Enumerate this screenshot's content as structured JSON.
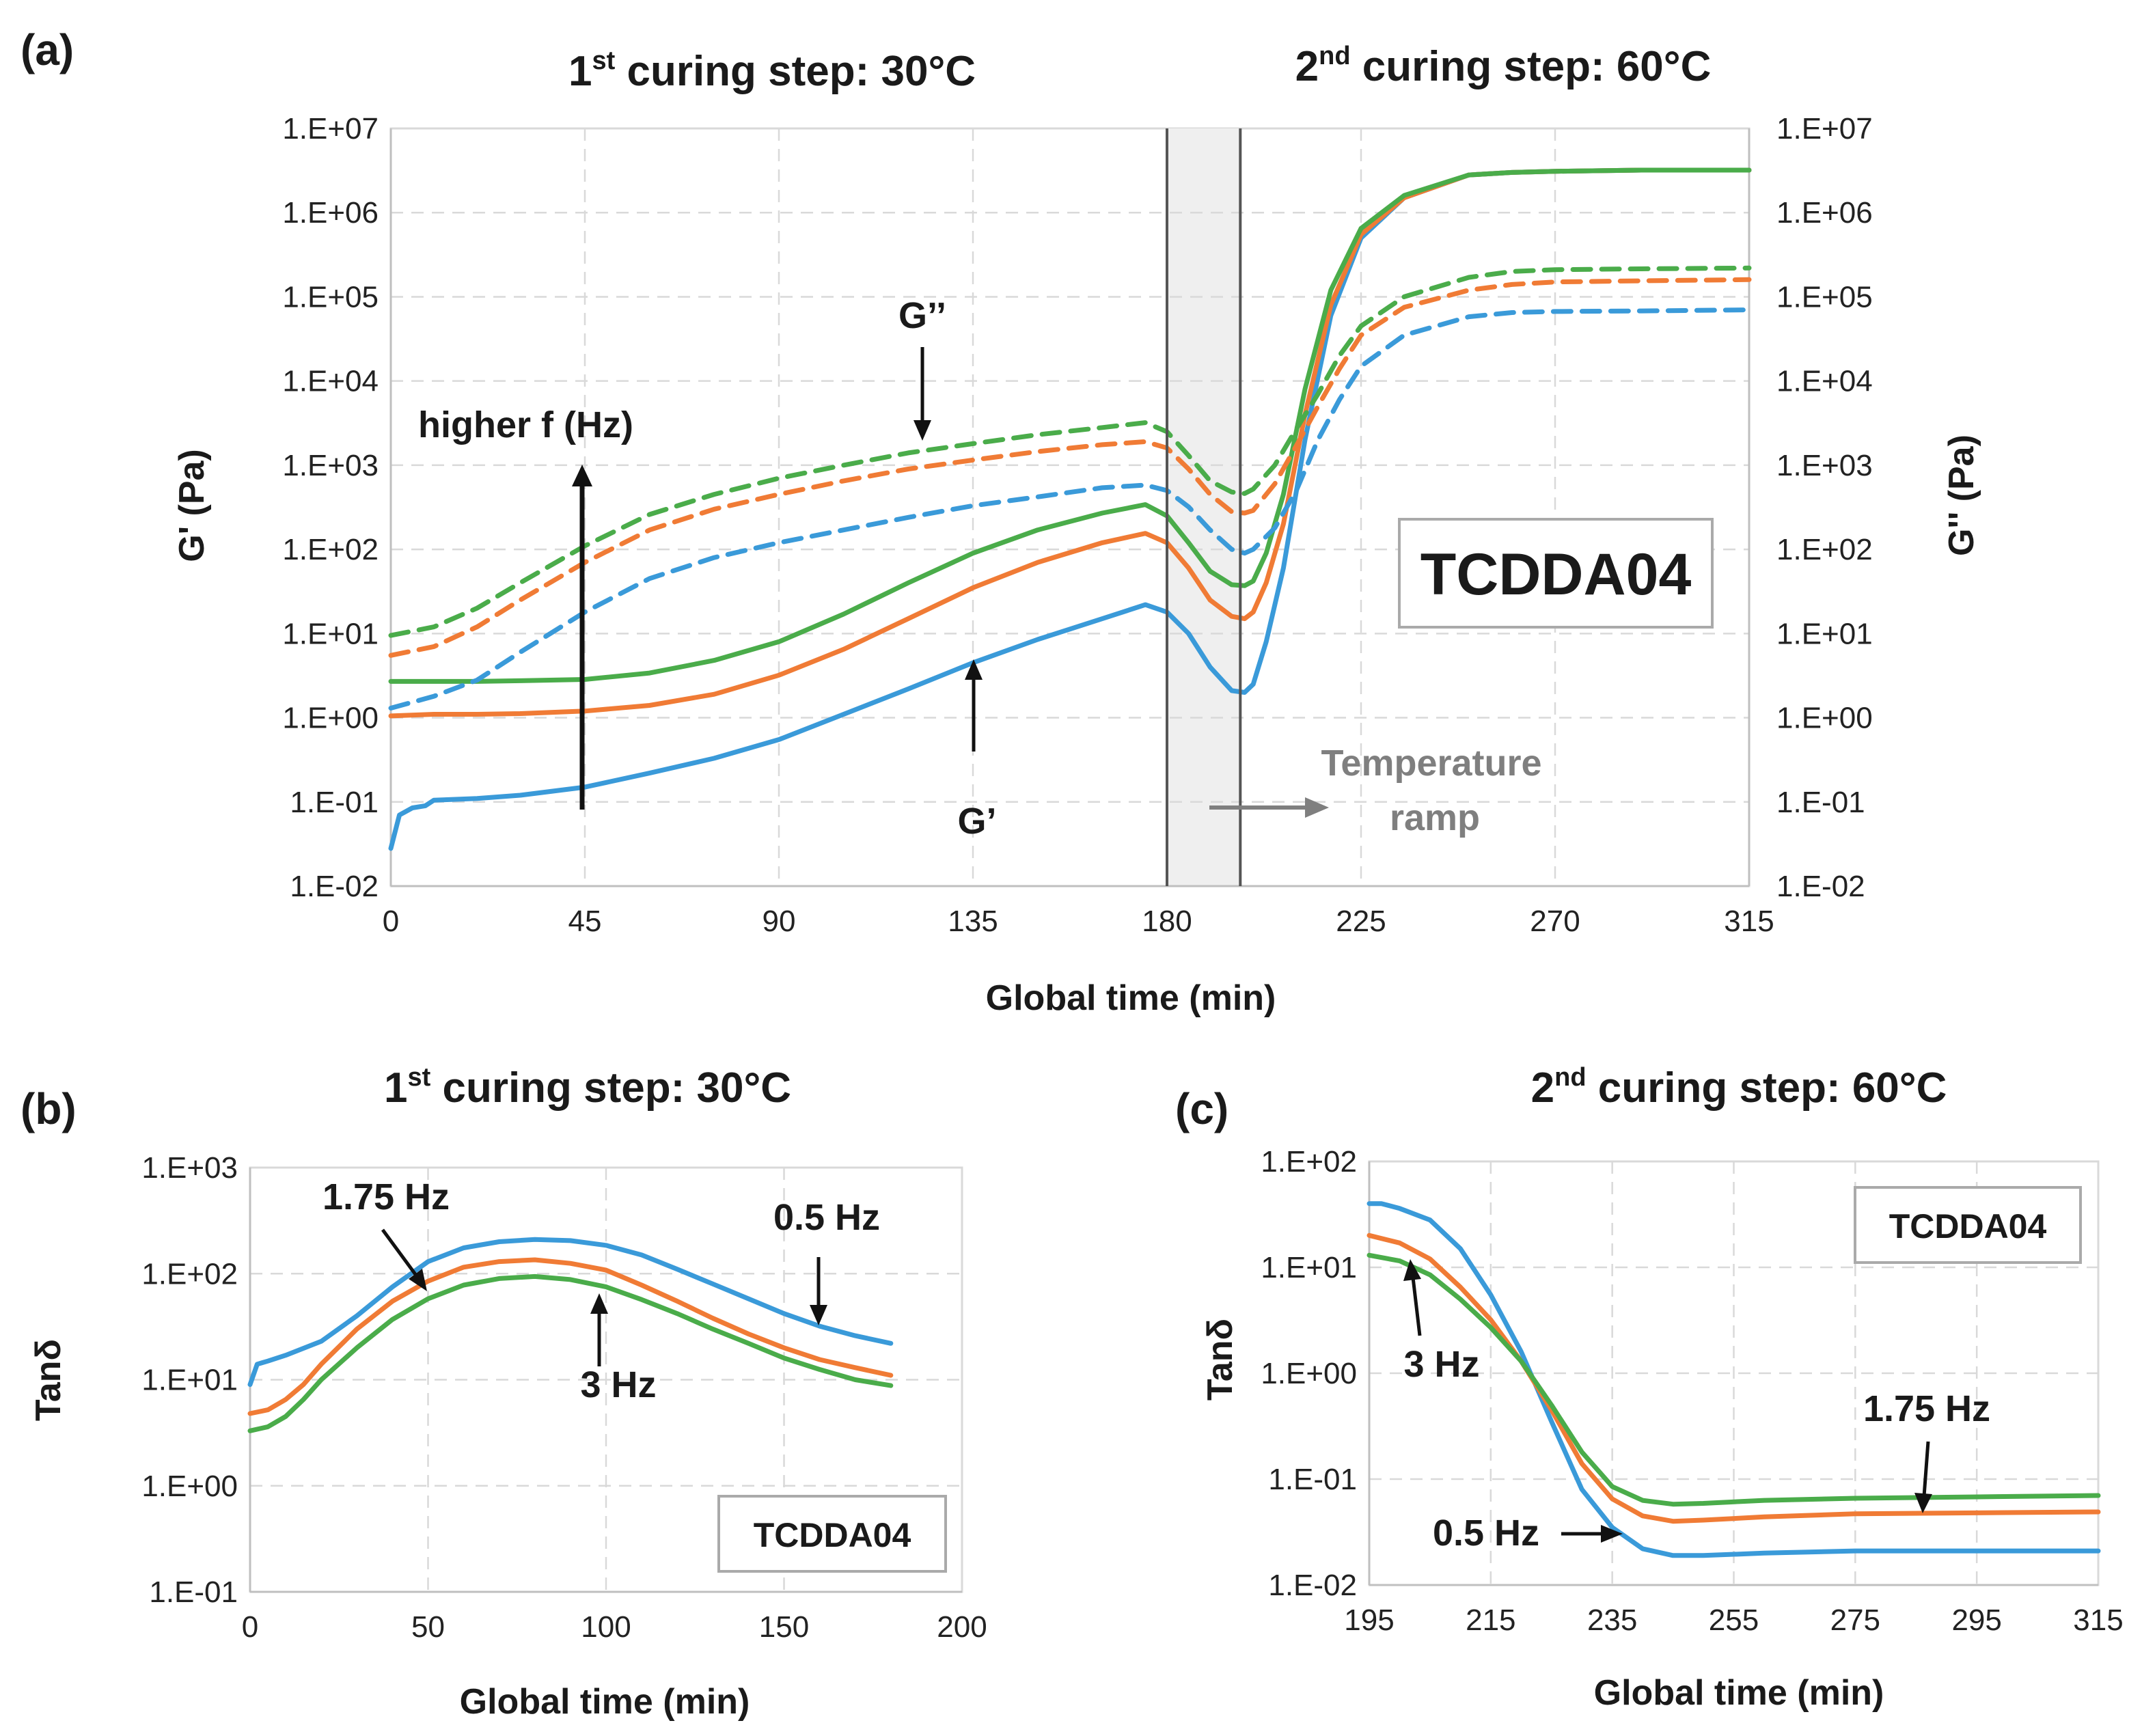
{
  "chart_data": [
    {
      "panel_label": "(a)",
      "type": "line",
      "title_left": {
        "main": "1",
        "sup": "st",
        "rest": " curing step: 30°C"
      },
      "title_right": {
        "main": "2",
        "sup": "nd",
        "rest": " curing step: 60°C"
      },
      "xlabel": "Global time (min)",
      "ylabel_left": "G' (Pa)",
      "ylabel_right": "G'' (Pa)",
      "yscale": "log",
      "xlim": [
        0,
        315
      ],
      "ylim": [
        0.01,
        10000000
      ],
      "xticks": [
        "0",
        "45",
        "90",
        "135",
        "180",
        "225",
        "270",
        "315"
      ],
      "yticks": [
        "1.E-02",
        "1.E-01",
        "1.E+00",
        "1.E+01",
        "1.E+02",
        "1.E+03",
        "1.E+04",
        "1.E+05",
        "1.E+06",
        "1.E+07"
      ],
      "shaded_region": [
        180,
        197
      ],
      "box_label": "TCDDA04",
      "annotations": {
        "higher_f": "higher f (Hz)",
        "g_double_prime": "G’’",
        "g_prime": "G’",
        "temp_ramp_line1": "Temperature",
        "temp_ramp_line2": "ramp"
      },
      "series": [
        {
          "name": "G' 0.5 Hz",
          "color": "#3a9ad9",
          "dash": false,
          "x": [
            0,
            2,
            5,
            8,
            10,
            20,
            30,
            45,
            60,
            75,
            90,
            105,
            120,
            135,
            150,
            165,
            175,
            180,
            185,
            190,
            195,
            198,
            200,
            203,
            207,
            212,
            218,
            225,
            235,
            250,
            260,
            270,
            290,
            315
          ],
          "y": [
            0.028,
            0.07,
            0.085,
            0.09,
            0.105,
            0.11,
            0.12,
            0.15,
            0.22,
            0.33,
            0.55,
            1.1,
            2.2,
            4.5,
            8.5,
            15,
            22,
            18,
            10,
            4,
            2.1,
            2.0,
            2.5,
            8,
            60,
            2000,
            60000,
            500000,
            1500000,
            2800000,
            3000000,
            3100000,
            3200000,
            3200000
          ]
        },
        {
          "name": "G' 1.75 Hz",
          "color": "#f07b35",
          "dash": false,
          "x": [
            0,
            10,
            20,
            30,
            45,
            60,
            75,
            90,
            105,
            120,
            135,
            150,
            165,
            175,
            180,
            185,
            190,
            195,
            198,
            200,
            203,
            207,
            212,
            218,
            225,
            235,
            250,
            260,
            270,
            290,
            315
          ],
          "y": [
            1.05,
            1.1,
            1.1,
            1.12,
            1.2,
            1.4,
            1.9,
            3.2,
            6.5,
            15,
            35,
            70,
            120,
            155,
            120,
            60,
            25,
            16,
            15,
            18,
            40,
            200,
            4000,
            80000,
            550000,
            1500000,
            2800000,
            3000000,
            3100000,
            3200000,
            3200000
          ]
        },
        {
          "name": "G' 3 Hz",
          "color": "#4aac4a",
          "dash": false,
          "x": [
            0,
            10,
            20,
            30,
            45,
            60,
            75,
            90,
            105,
            120,
            135,
            150,
            165,
            175,
            180,
            185,
            190,
            195,
            198,
            200,
            203,
            207,
            212,
            218,
            225,
            235,
            250,
            260,
            270,
            290,
            315
          ],
          "y": [
            2.7,
            2.7,
            2.7,
            2.75,
            2.85,
            3.4,
            4.8,
            8,
            17,
            40,
            90,
            170,
            270,
            340,
            250,
            120,
            55,
            38,
            37,
            42,
            90,
            450,
            8000,
            120000,
            650000,
            1600000,
            2800000,
            3000000,
            3100000,
            3200000,
            3200000
          ]
        },
        {
          "name": "G'' 0.5 Hz",
          "color": "#3a9ad9",
          "dash": true,
          "x": [
            0,
            10,
            20,
            30,
            45,
            60,
            75,
            90,
            105,
            120,
            135,
            150,
            165,
            175,
            180,
            185,
            190,
            195,
            198,
            200,
            205,
            210,
            215,
            220,
            225,
            235,
            250,
            260,
            270,
            290,
            315
          ],
          "y": [
            1.3,
            1.8,
            2.8,
            6,
            18,
            45,
            80,
            120,
            170,
            240,
            330,
            420,
            540,
            580,
            500,
            320,
            170,
            100,
            90,
            100,
            180,
            500,
            2000,
            6000,
            15000,
            35000,
            58000,
            65000,
            67000,
            68000,
            70000
          ]
        },
        {
          "name": "G'' 1.75 Hz",
          "color": "#f07b35",
          "dash": true,
          "x": [
            0,
            10,
            20,
            30,
            45,
            60,
            75,
            90,
            105,
            120,
            135,
            150,
            165,
            175,
            180,
            185,
            190,
            195,
            198,
            200,
            205,
            210,
            215,
            220,
            225,
            235,
            250,
            260,
            270,
            290,
            315
          ],
          "y": [
            5.5,
            7,
            12,
            25,
            70,
            170,
            300,
            450,
            650,
            900,
            1150,
            1450,
            1750,
            1900,
            1600,
            900,
            450,
            280,
            270,
            290,
            600,
            1700,
            5000,
            14000,
            35000,
            75000,
            120000,
            140000,
            150000,
            155000,
            160000
          ]
        },
        {
          "name": "G'' 3 Hz",
          "color": "#4aac4a",
          "dash": true,
          "x": [
            0,
            10,
            20,
            30,
            45,
            60,
            75,
            90,
            105,
            120,
            135,
            150,
            165,
            175,
            180,
            185,
            190,
            195,
            198,
            200,
            205,
            210,
            215,
            220,
            225,
            235,
            250,
            260,
            270,
            290,
            315
          ],
          "y": [
            9.5,
            12,
            20,
            40,
            110,
            260,
            450,
            700,
            1000,
            1400,
            1800,
            2300,
            2800,
            3200,
            2500,
            1300,
            650,
            480,
            460,
            520,
            1000,
            2700,
            7000,
            20000,
            45000,
            100000,
            170000,
            200000,
            210000,
            215000,
            220000
          ]
        }
      ]
    },
    {
      "panel_label": "(b)",
      "type": "line",
      "title": {
        "main": "1",
        "sup": "st",
        "rest": " curing step: 30°C"
      },
      "xlabel": "Global time (min)",
      "ylabel": "Tanδ",
      "yscale": "log",
      "xlim": [
        0,
        200
      ],
      "ylim": [
        0.1,
        1000
      ],
      "xticks": [
        "0",
        "50",
        "100",
        "150",
        "200"
      ],
      "yticks": [
        "1.E-01",
        "1.E+00",
        "1.E+01",
        "1.E+02",
        "1.E+03"
      ],
      "box_label": "TCDDA04",
      "annotations": {
        "f175": "1.75 Hz",
        "f05": "0.5 Hz",
        "f3": "3 Hz"
      },
      "series": [
        {
          "name": "0.5 Hz",
          "color": "#3a9ad9",
          "x": [
            0,
            2,
            5,
            10,
            20,
            30,
            40,
            50,
            60,
            70,
            80,
            90,
            100,
            110,
            120,
            130,
            140,
            150,
            160,
            170,
            180
          ],
          "y": [
            9,
            14,
            15,
            17,
            23,
            40,
            75,
            130,
            175,
            200,
            210,
            205,
            185,
            150,
            110,
            80,
            58,
            42,
            32,
            26,
            22
          ]
        },
        {
          "name": "1.75 Hz",
          "color": "#f07b35",
          "x": [
            0,
            5,
            10,
            15,
            20,
            30,
            40,
            50,
            60,
            70,
            80,
            90,
            100,
            110,
            120,
            130,
            140,
            150,
            160,
            170,
            180
          ],
          "y": [
            4.8,
            5.2,
            6.5,
            9,
            14,
            30,
            55,
            85,
            115,
            130,
            135,
            125,
            108,
            78,
            55,
            38,
            27,
            20,
            15.5,
            13,
            11
          ]
        },
        {
          "name": "3 Hz",
          "color": "#4aac4a",
          "x": [
            0,
            5,
            10,
            15,
            20,
            30,
            40,
            50,
            60,
            70,
            80,
            90,
            100,
            110,
            120,
            130,
            140,
            150,
            160,
            170,
            180
          ],
          "y": [
            3.3,
            3.6,
            4.5,
            6.5,
            10,
            20,
            37,
            58,
            78,
            90,
            94,
            88,
            75,
            57,
            42,
            30,
            22,
            16,
            12.5,
            10,
            8.8
          ]
        }
      ]
    },
    {
      "panel_label": "(c)",
      "type": "line",
      "title": {
        "main": "2",
        "sup": "nd",
        "rest": " curing step: 60°C"
      },
      "xlabel": "Global time (min)",
      "ylabel": "Tanδ",
      "yscale": "log",
      "xlim": [
        195,
        315
      ],
      "ylim": [
        0.01,
        100
      ],
      "xticks": [
        "195",
        "215",
        "235",
        "255",
        "275",
        "295",
        "315"
      ],
      "yticks": [
        "1.E-02",
        "1.E-01",
        "1.E+00",
        "1.E+01",
        "1.E+02"
      ],
      "box_label": "TCDDA04",
      "annotations": {
        "f3": "3 Hz",
        "f175": "1.75 Hz",
        "f05": "0.5 Hz"
      },
      "series": [
        {
          "name": "0.5 Hz",
          "color": "#3a9ad9",
          "x": [
            195,
            197,
            200,
            205,
            210,
            215,
            220,
            225,
            230,
            235,
            240,
            245,
            250,
            260,
            275,
            295,
            315
          ],
          "y": [
            40,
            40,
            36,
            28,
            15,
            5.5,
            1.6,
            0.35,
            0.08,
            0.035,
            0.022,
            0.019,
            0.019,
            0.02,
            0.021,
            0.021,
            0.021
          ]
        },
        {
          "name": "1.75 Hz",
          "color": "#f07b35",
          "x": [
            195,
            200,
            205,
            210,
            215,
            220,
            225,
            230,
            235,
            240,
            245,
            250,
            260,
            275,
            295,
            315
          ],
          "y": [
            20,
            17,
            12,
            6.5,
            3.2,
            1.3,
            0.45,
            0.14,
            0.065,
            0.045,
            0.04,
            0.041,
            0.044,
            0.047,
            0.048,
            0.049
          ]
        },
        {
          "name": "3 Hz",
          "color": "#4aac4a",
          "x": [
            195,
            200,
            205,
            210,
            215,
            220,
            225,
            230,
            235,
            240,
            245,
            250,
            260,
            275,
            295,
            315
          ],
          "y": [
            13,
            11.5,
            8.5,
            5,
            2.7,
            1.3,
            0.5,
            0.18,
            0.085,
            0.063,
            0.058,
            0.059,
            0.063,
            0.066,
            0.068,
            0.07
          ]
        }
      ]
    }
  ]
}
